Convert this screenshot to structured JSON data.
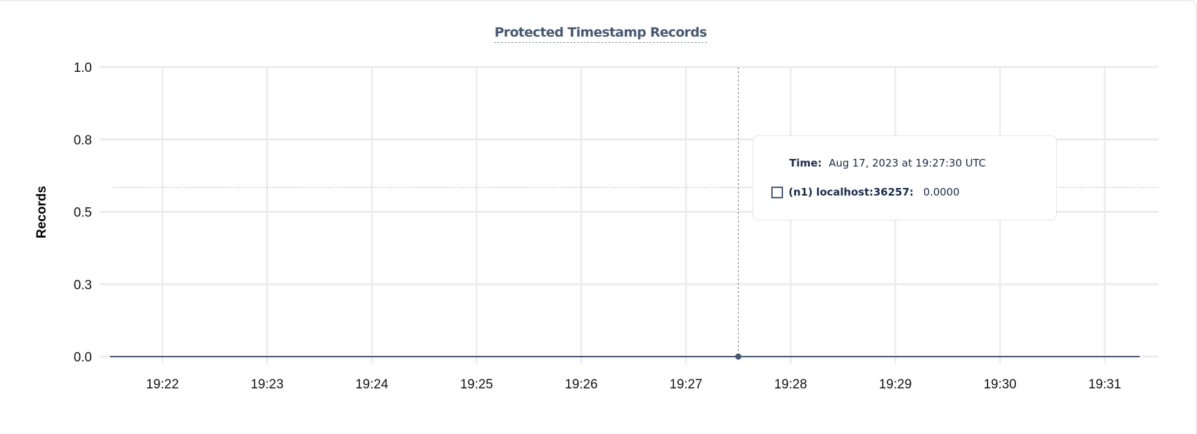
{
  "chart_data": {
    "type": "line",
    "title": "Protected Timestamp Records",
    "ylabel": "Records",
    "xlabel": "",
    "ylim": [
      0,
      1
    ],
    "y_ticks": [
      "0.0",
      "0.3",
      "0.5",
      "0.8",
      "1.0"
    ],
    "y_tick_values": [
      0,
      0.25,
      0.5,
      0.75,
      1.0
    ],
    "x_ticks": [
      "19:22",
      "19:23",
      "19:24",
      "19:25",
      "19:26",
      "19:27",
      "19:28",
      "19:29",
      "19:30",
      "19:31"
    ],
    "xlim": [
      "19:21:30",
      "19:31:20"
    ],
    "grid": true,
    "series": [
      {
        "name": "(n1) localhost:36257",
        "color": "#475872",
        "x": [
          "19:21:30",
          "19:22:30",
          "19:23:30",
          "19:24:30",
          "19:25:30",
          "19:26:30",
          "19:27:30",
          "19:28:30",
          "19:29:30",
          "19:30:30",
          "19:31:20"
        ],
        "y": [
          0,
          0,
          0,
          0,
          0,
          0,
          0,
          0,
          0,
          0,
          0
        ]
      }
    ],
    "hover": {
      "x": "19:27:30",
      "series_index": 0
    }
  },
  "tooltip": {
    "time_label": "Time:",
    "time_value": "Aug 17, 2023 at 19:27:30 UTC",
    "series_label": "(n1) localhost:36257:",
    "series_value": "0.0000"
  }
}
